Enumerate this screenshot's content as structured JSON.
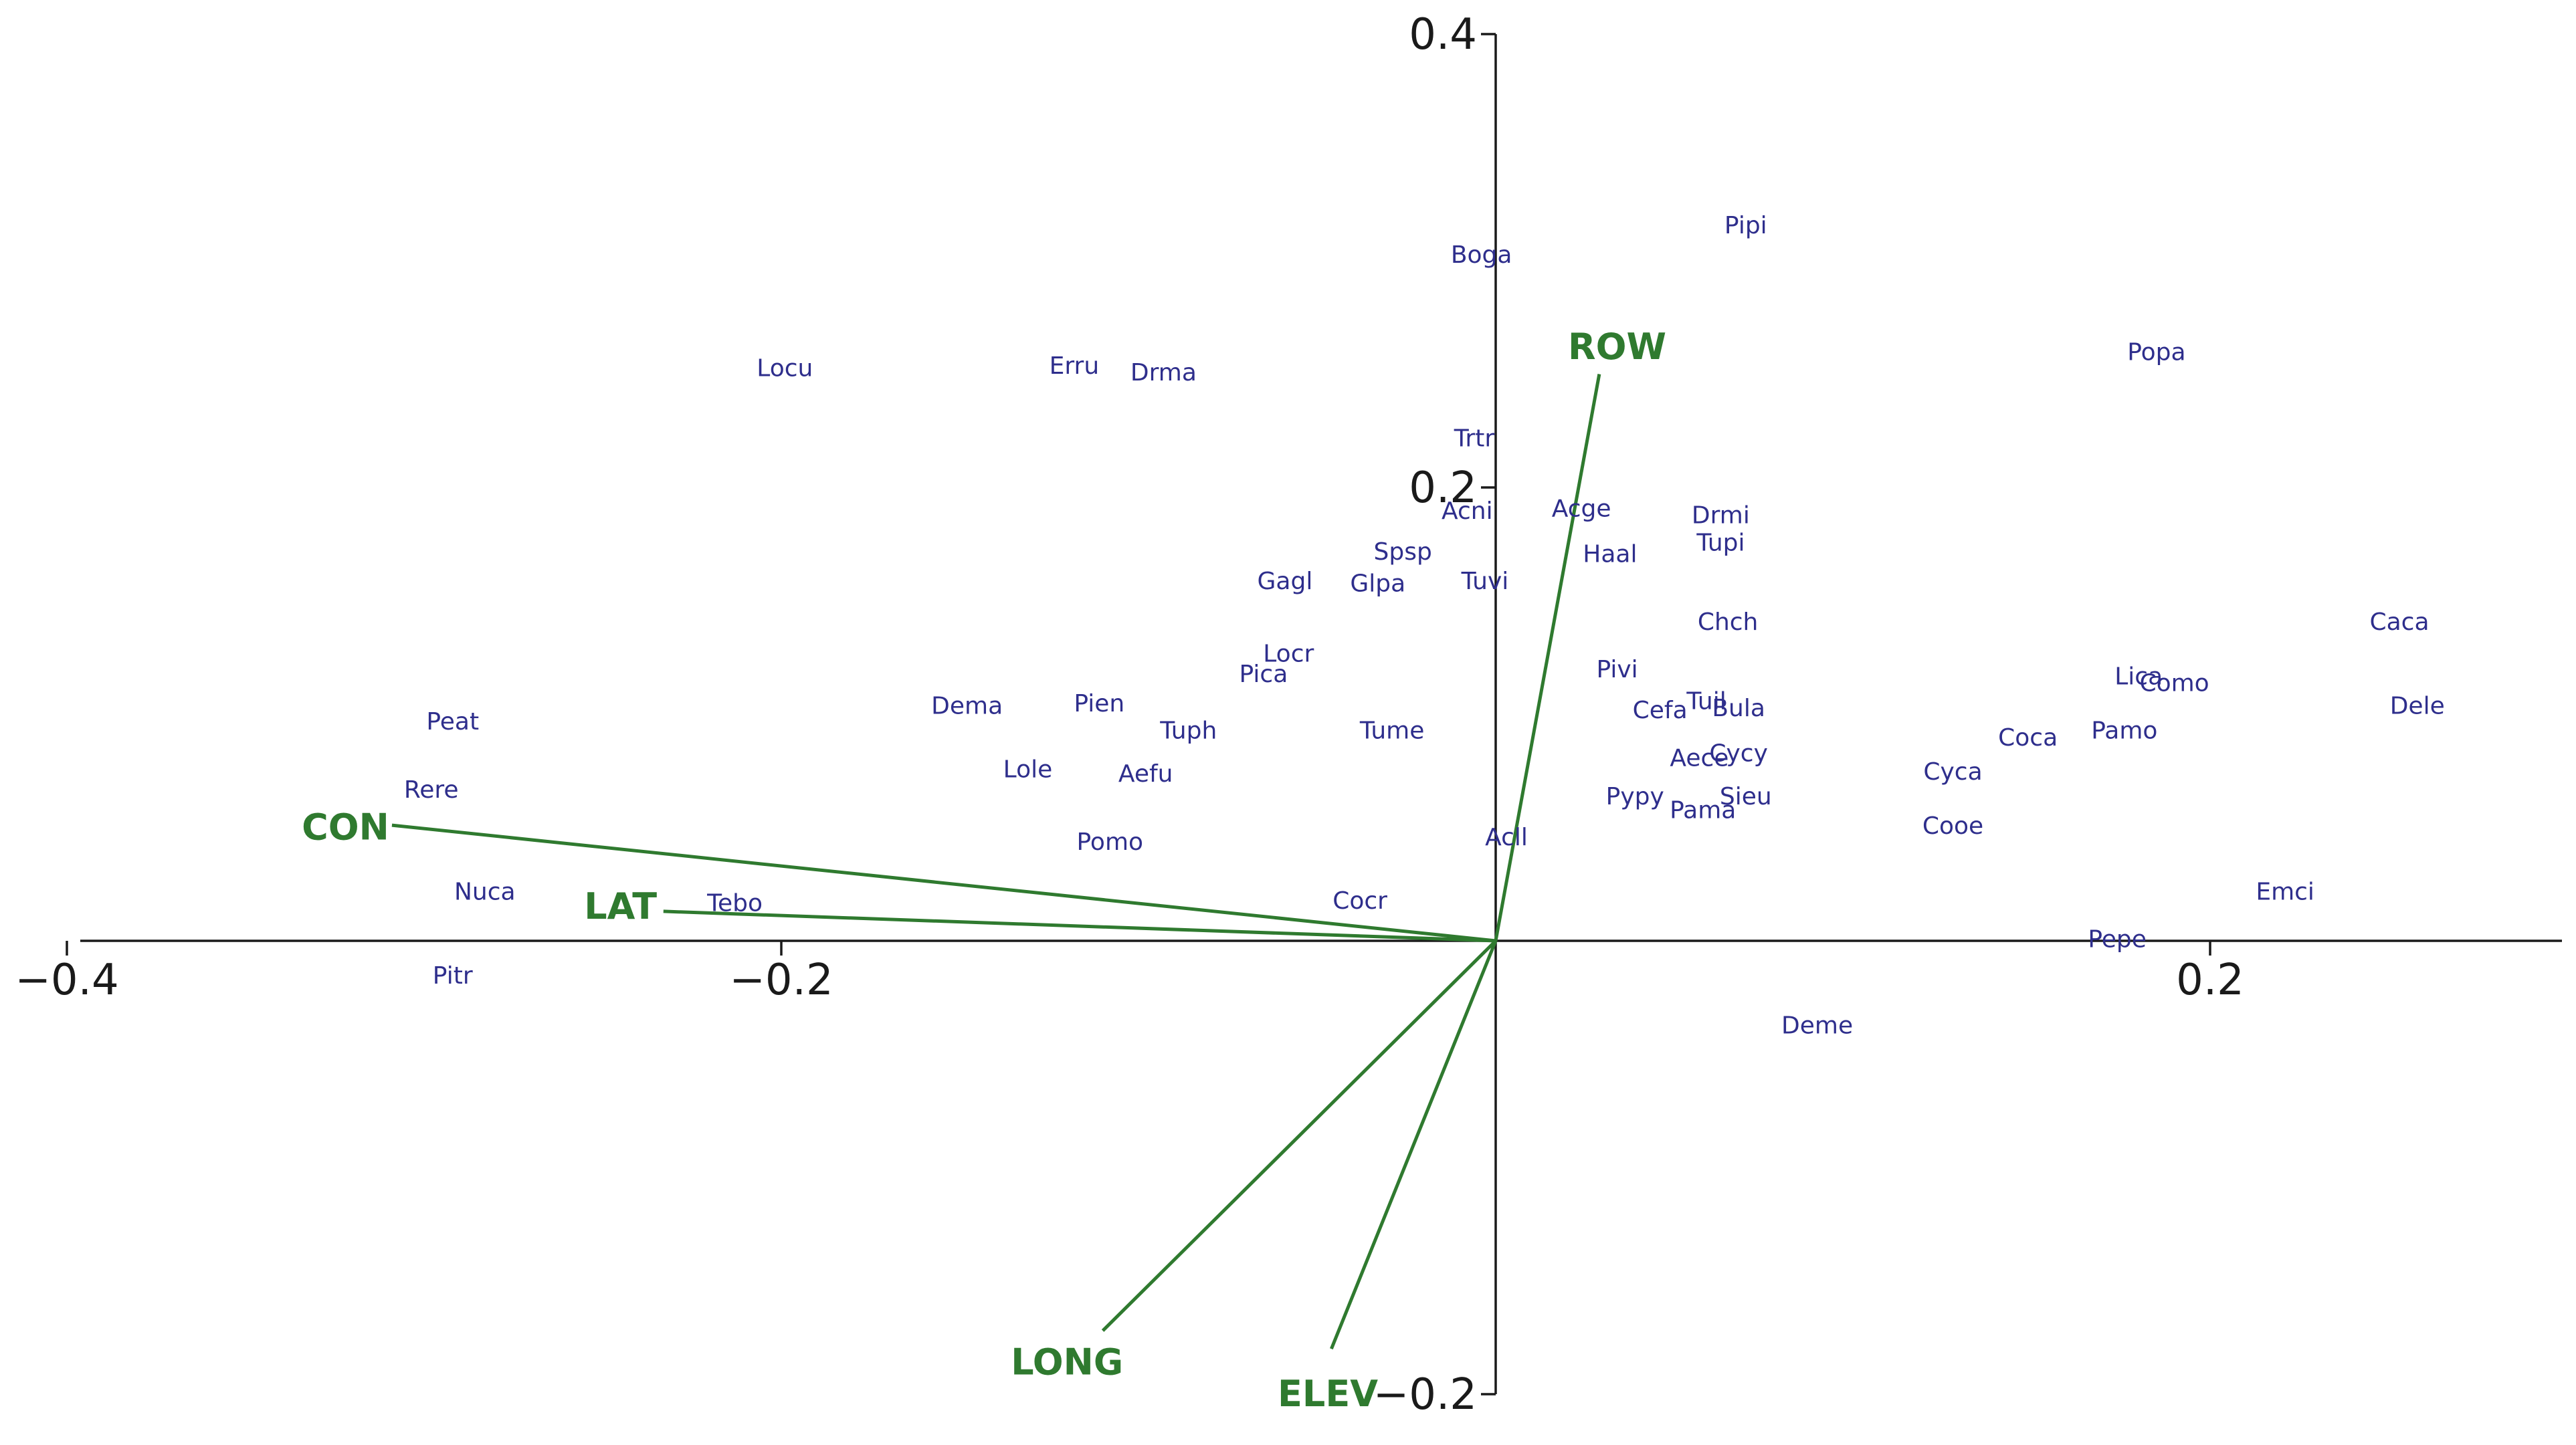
{
  "chart_data": {
    "type": "scatter",
    "title": "",
    "xlabel": "",
    "ylabel": "",
    "xlim": [
      -0.4,
      0.35
    ],
    "ylim": [
      -0.2,
      0.4
    ],
    "grid": false,
    "colors": {
      "axis": "#1a1a1a",
      "species": "#2e2e8c",
      "vectors": "#2f7a2f"
    },
    "x_ticks": [
      {
        "value": -0.4,
        "label": "−0.4"
      },
      {
        "value": -0.2,
        "label": "−0.2"
      },
      {
        "value": 0.2,
        "label": "0.2"
      }
    ],
    "y_ticks": [
      {
        "value": 0.4,
        "label": "0.4"
      },
      {
        "value": 0.2,
        "label": "0.2"
      },
      {
        "value": -0.2,
        "label": "−0.2"
      }
    ],
    "species": [
      {
        "label": "Pipi",
        "x": 0.07,
        "y": 0.316
      },
      {
        "label": "Boga",
        "x": -0.004,
        "y": 0.303
      },
      {
        "label": "Popa",
        "x": 0.185,
        "y": 0.26
      },
      {
        "label": "Locu",
        "x": -0.199,
        "y": 0.253
      },
      {
        "label": "Erru",
        "x": -0.118,
        "y": 0.254
      },
      {
        "label": "Drma",
        "x": -0.093,
        "y": 0.251
      },
      {
        "label": "Trtr",
        "x": -0.006,
        "y": 0.222
      },
      {
        "label": "Acni",
        "x": -0.008,
        "y": 0.19
      },
      {
        "label": "Acge",
        "x": 0.024,
        "y": 0.191
      },
      {
        "label": "Drmi",
        "x": 0.063,
        "y": 0.188
      },
      {
        "label": "Tupi",
        "x": 0.063,
        "y": 0.176
      },
      {
        "label": "Spsp",
        "x": -0.026,
        "y": 0.172
      },
      {
        "label": "Haal",
        "x": 0.032,
        "y": 0.171
      },
      {
        "label": "Gagl",
        "x": -0.059,
        "y": 0.159
      },
      {
        "label": "Glpa",
        "x": -0.033,
        "y": 0.158
      },
      {
        "label": "Tuvi",
        "x": -0.003,
        "y": 0.159
      },
      {
        "label": "Chch",
        "x": 0.065,
        "y": 0.141
      },
      {
        "label": "Caca",
        "x": 0.253,
        "y": 0.141
      },
      {
        "label": "Locr",
        "x": -0.058,
        "y": 0.127
      },
      {
        "label": "Pica",
        "x": -0.065,
        "y": 0.118
      },
      {
        "label": "Pivi",
        "x": 0.034,
        "y": 0.12
      },
      {
        "label": "Lica",
        "x": 0.18,
        "y": 0.117
      },
      {
        "label": "Como",
        "x": 0.19,
        "y": 0.114
      },
      {
        "label": "Dema",
        "x": -0.148,
        "y": 0.104
      },
      {
        "label": "Pien",
        "x": -0.111,
        "y": 0.105
      },
      {
        "label": "Cefa",
        "x": 0.046,
        "y": 0.102
      },
      {
        "label": "Tuil",
        "x": 0.059,
        "y": 0.106
      },
      {
        "label": "Bula",
        "x": 0.068,
        "y": 0.103
      },
      {
        "label": "Dele",
        "x": 0.258,
        "y": 0.104
      },
      {
        "label": "Peat",
        "x": -0.292,
        "y": 0.097
      },
      {
        "label": "Tuph",
        "x": -0.086,
        "y": 0.093
      },
      {
        "label": "Tume",
        "x": -0.029,
        "y": 0.093
      },
      {
        "label": "Coca",
        "x": 0.149,
        "y": 0.09
      },
      {
        "label": "Pamo",
        "x": 0.176,
        "y": 0.093
      },
      {
        "label": "Aece",
        "x": 0.057,
        "y": 0.081
      },
      {
        "label": "Cycy",
        "x": 0.068,
        "y": 0.083
      },
      {
        "label": "Cyca",
        "x": 0.128,
        "y": 0.075
      },
      {
        "label": "Lole",
        "x": -0.131,
        "y": 0.076
      },
      {
        "label": "Aefu",
        "x": -0.098,
        "y": 0.074
      },
      {
        "label": "Rere",
        "x": -0.298,
        "y": 0.067
      },
      {
        "label": "Pypy",
        "x": 0.039,
        "y": 0.064
      },
      {
        "label": "Pama",
        "x": 0.058,
        "y": 0.058
      },
      {
        "label": "Sieu",
        "x": 0.07,
        "y": 0.064
      },
      {
        "label": "Cooe",
        "x": 0.128,
        "y": 0.051
      },
      {
        "label": "Pomo",
        "x": -0.108,
        "y": 0.044
      },
      {
        "label": "Acll",
        "x": 0.003,
        "y": 0.046
      },
      {
        "label": "Cocr",
        "x": -0.038,
        "y": 0.018
      },
      {
        "label": "Emci",
        "x": 0.221,
        "y": 0.022
      },
      {
        "label": "Nuca",
        "x": -0.283,
        "y": 0.022
      },
      {
        "label": "Tebo",
        "x": -0.213,
        "y": 0.017
      },
      {
        "label": "Pepe",
        "x": 0.174,
        "y": 0.001
      },
      {
        "label": "Pitr",
        "x": -0.292,
        "y": -0.015
      },
      {
        "label": "Deme",
        "x": 0.09,
        "y": -0.037
      }
    ],
    "vectors": [
      {
        "label": "ROW",
        "x": 0.029,
        "y": 0.25,
        "label_x": 0.034,
        "label_y": 0.262
      },
      {
        "label": "CON",
        "x": -0.309,
        "y": 0.051,
        "label_x": -0.322,
        "label_y": 0.05
      },
      {
        "label": "LAT",
        "x": -0.233,
        "y": 0.013,
        "label_x": -0.245,
        "label_y": 0.015
      },
      {
        "label": "LONG",
        "x": -0.11,
        "y": -0.172,
        "label_x": -0.12,
        "label_y": -0.186
      },
      {
        "label": "ELEV",
        "x": -0.046,
        "y": -0.18,
        "label_x": -0.047,
        "label_y": -0.2
      }
    ]
  }
}
